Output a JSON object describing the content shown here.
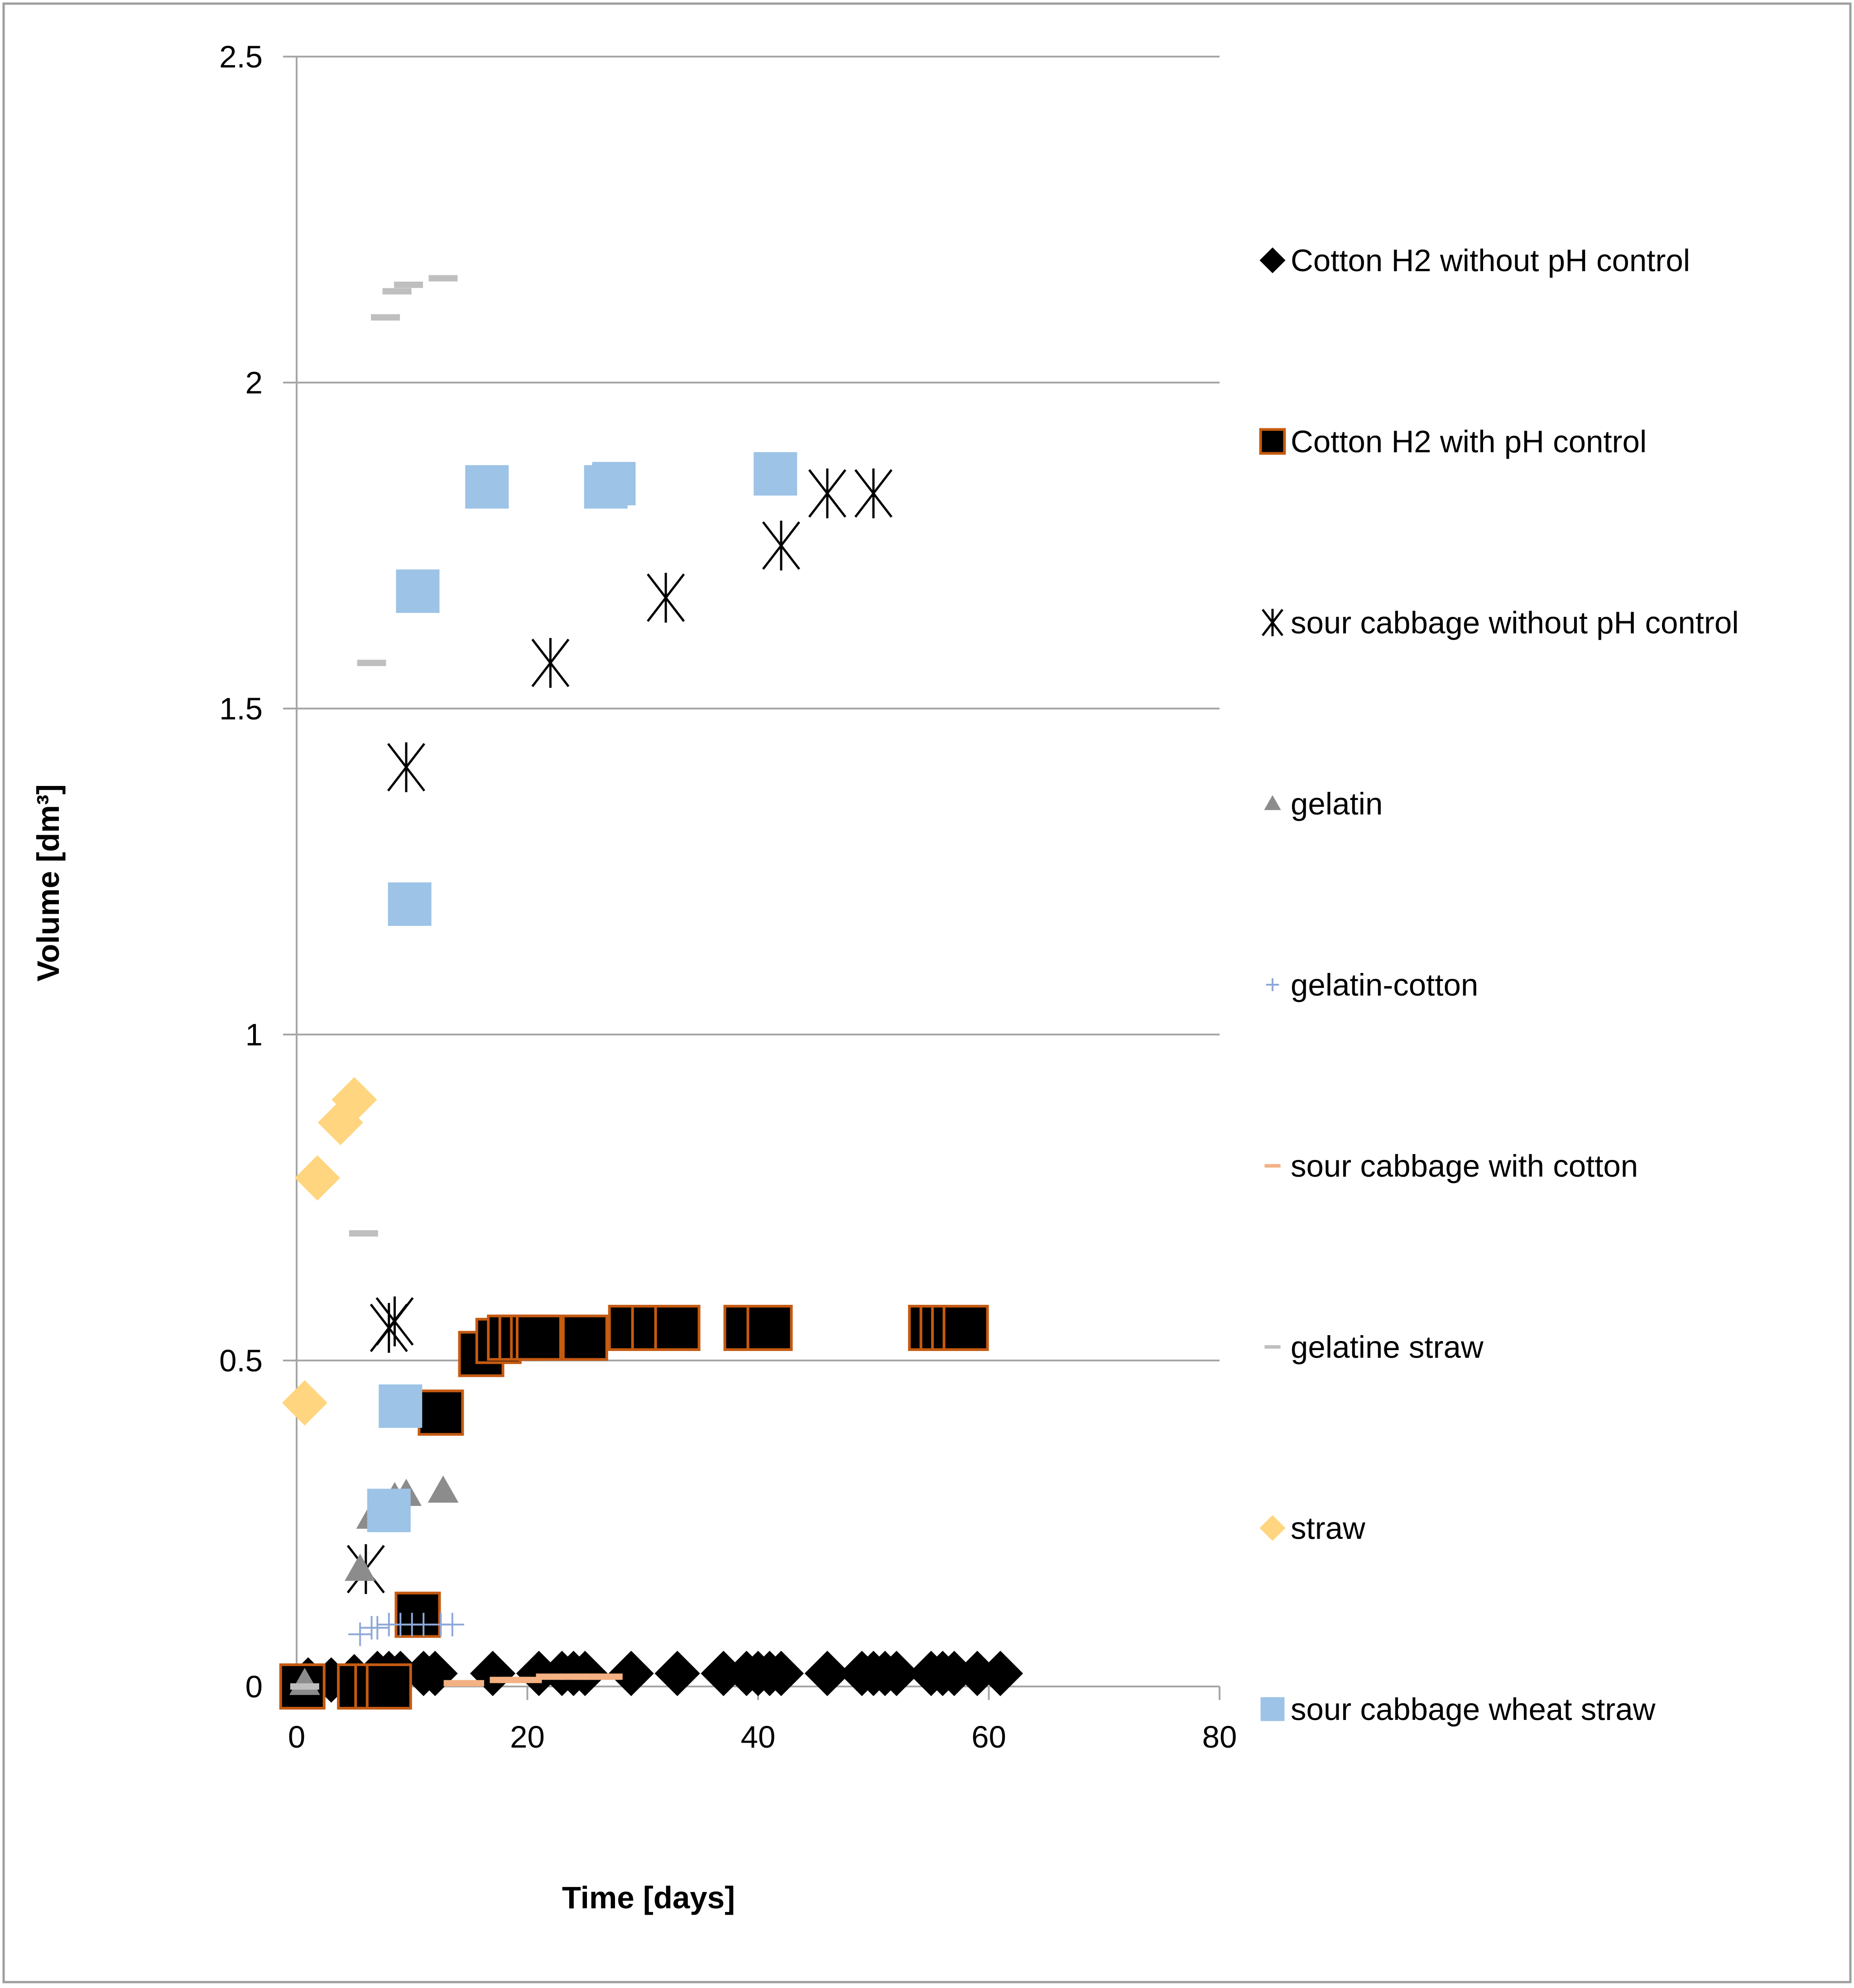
{
  "chart_data": {
    "type": "scatter",
    "title": "",
    "xlabel": "Time [days]",
    "ylabel": "Volume [dm³]",
    "xlim": [
      0,
      80
    ],
    "ylim": [
      0,
      2.5
    ],
    "x_ticks": [
      {
        "value": 0,
        "label": "0"
      },
      {
        "value": 20,
        "label": "20"
      },
      {
        "value": 40,
        "label": "40"
      },
      {
        "value": 60,
        "label": "60"
      },
      {
        "value": 80,
        "label": "80"
      }
    ],
    "y_ticks": [
      {
        "value": 0,
        "label": "0"
      },
      {
        "value": 0.5,
        "label": "0.5"
      },
      {
        "value": 1,
        "label": "1"
      },
      {
        "value": 1.5,
        "label": "1.5"
      },
      {
        "value": 2,
        "label": "2"
      },
      {
        "value": 2.5,
        "label": "2.5"
      }
    ],
    "grid": "horizontal",
    "legend_position": "right",
    "series": [
      {
        "name": "Cotton H2 without pH control",
        "marker": "diamond",
        "color": "#000000",
        "stroke": "#000000",
        "points": [
          [
            1,
            0.01
          ],
          [
            3,
            0.01
          ],
          [
            5,
            0.015
          ],
          [
            7,
            0.02
          ],
          [
            8,
            0.02
          ],
          [
            9,
            0.02
          ],
          [
            11,
            0.02
          ],
          [
            12,
            0.02
          ],
          [
            17,
            0.02
          ],
          [
            21,
            0.02
          ],
          [
            23,
            0.02
          ],
          [
            24,
            0.02
          ],
          [
            25,
            0.02
          ],
          [
            29,
            0.02
          ],
          [
            33,
            0.02
          ],
          [
            37,
            0.02
          ],
          [
            39,
            0.02
          ],
          [
            40,
            0.02
          ],
          [
            41,
            0.02
          ],
          [
            42,
            0.02
          ],
          [
            46,
            0.02
          ],
          [
            49,
            0.02
          ],
          [
            50,
            0.02
          ],
          [
            51,
            0.02
          ],
          [
            52,
            0.02
          ],
          [
            55,
            0.02
          ],
          [
            56,
            0.02
          ],
          [
            57,
            0.02
          ],
          [
            59,
            0.02
          ],
          [
            61,
            0.02
          ]
        ]
      },
      {
        "name": "Cotton H2 with  pH control",
        "marker": "square",
        "color": "#000000",
        "stroke": "#C55A11",
        "points": [
          [
            0.5,
            0.0
          ],
          [
            5.5,
            0.0
          ],
          [
            7,
            0.0
          ],
          [
            8,
            0.0
          ],
          [
            10.5,
            0.11
          ],
          [
            12.5,
            0.42
          ],
          [
            16,
            0.51
          ],
          [
            17.5,
            0.53
          ],
          [
            18.5,
            0.535
          ],
          [
            19.5,
            0.535
          ],
          [
            20.5,
            0.535
          ],
          [
            21,
            0.535
          ],
          [
            25,
            0.535
          ],
          [
            29,
            0.55
          ],
          [
            31,
            0.55
          ],
          [
            33,
            0.55
          ],
          [
            39,
            0.55
          ],
          [
            41,
            0.55
          ],
          [
            55,
            0.55
          ],
          [
            56,
            0.55
          ],
          [
            57,
            0.55
          ],
          [
            58,
            0.55
          ]
        ]
      },
      {
        "name": "sour cabbage without  pH control",
        "marker": "asterisk",
        "color": "#000000",
        "stroke": "#000000",
        "points": [
          [
            6,
            0.18
          ],
          [
            8,
            0.55
          ],
          [
            8.5,
            0.56
          ],
          [
            9.5,
            1.41
          ],
          [
            22,
            1.57
          ],
          [
            32,
            1.67
          ],
          [
            42,
            1.75
          ],
          [
            46,
            1.83
          ],
          [
            50,
            1.83
          ]
        ]
      },
      {
        "name": "gelatin",
        "marker": "triangle",
        "color": "#8C8C8C",
        "stroke": "#8C8C8C",
        "points": [
          [
            0.7,
            0.005
          ],
          [
            5.5,
            0.18
          ],
          [
            6.5,
            0.26
          ],
          [
            7.5,
            0.28
          ],
          [
            8.5,
            0.29
          ],
          [
            9.5,
            0.295
          ],
          [
            12.7,
            0.3
          ]
        ]
      },
      {
        "name": "gelatin-cotton",
        "marker": "plus",
        "color": "#8FA8D9",
        "stroke": "#8FA8D9",
        "points": [
          [
            5.5,
            0.08
          ],
          [
            6.5,
            0.09
          ],
          [
            7,
            0.09
          ],
          [
            8,
            0.095
          ],
          [
            9,
            0.095
          ],
          [
            10,
            0.095
          ],
          [
            11,
            0.095
          ],
          [
            12.5,
            0.095
          ],
          [
            13.5,
            0.095
          ]
        ]
      },
      {
        "name": "sour cabbage with cotton",
        "marker": "dash",
        "color": "#F4B183",
        "stroke": "#F4B183",
        "points": [
          [
            14,
            0.005
          ],
          [
            15,
            0.005
          ],
          [
            18,
            0.01
          ],
          [
            19,
            0.01
          ],
          [
            20,
            0.01
          ],
          [
            22,
            0.015
          ],
          [
            24,
            0.015
          ],
          [
            25,
            0.015
          ],
          [
            26,
            0.015
          ],
          [
            27,
            0.015
          ]
        ]
      },
      {
        "name": "gelatine straw",
        "marker": "dash",
        "color": "#BFBFBF",
        "stroke": "#BFBFBF",
        "points": [
          [
            0.7,
            0.0
          ],
          [
            5.8,
            0.695
          ],
          [
            6.5,
            1.57
          ],
          [
            7.7,
            2.1
          ],
          [
            8.7,
            2.14
          ],
          [
            9.7,
            2.15
          ],
          [
            12.7,
            2.16
          ]
        ]
      },
      {
        "name": "straw",
        "marker": "diamond",
        "color": "#FFD580",
        "stroke": "#FFD580",
        "points": [
          [
            0.7,
            0.435
          ],
          [
            1.8,
            0.78
          ],
          [
            3.8,
            0.865
          ],
          [
            5,
            0.9
          ]
        ]
      },
      {
        "name": "sour cabbage wheat straw",
        "marker": "square",
        "color": "#9DC3E6",
        "stroke": "#9DC3E6",
        "points": [
          [
            8,
            0.27
          ],
          [
            9,
            0.43
          ],
          [
            9.8,
            1.2
          ],
          [
            10.5,
            1.68
          ],
          [
            16.5,
            1.84
          ],
          [
            26.8,
            1.84
          ],
          [
            27.5,
            1.845
          ],
          [
            41.5,
            1.86
          ]
        ]
      }
    ]
  }
}
